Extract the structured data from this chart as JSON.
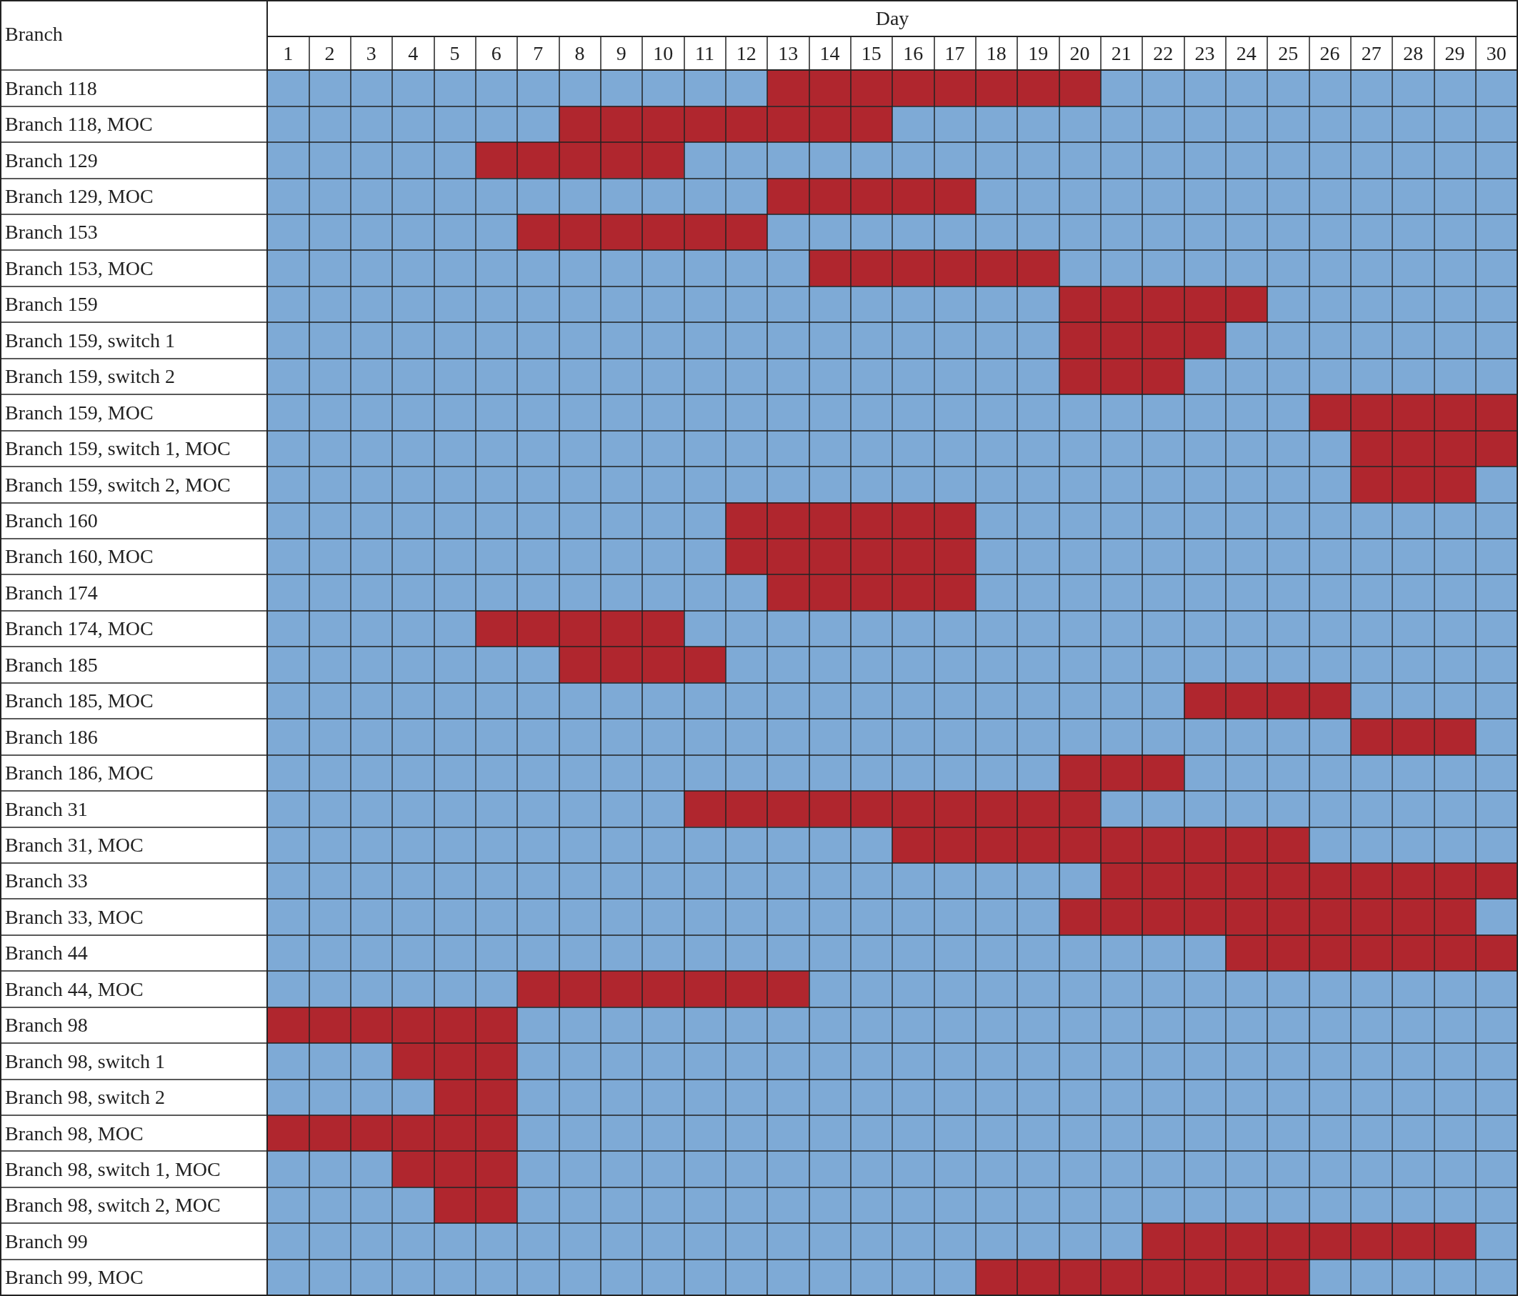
{
  "chart_data": {
    "type": "bar",
    "orientation": "horizontal",
    "xlabel": "Day",
    "ylabel": "Branch",
    "categories": [
      "Branch 118",
      "Branch 118, MOC",
      "Branch 129",
      "Branch 129, MOC",
      "Branch 153",
      "Branch 153, MOC",
      "Branch 159",
      "Branch 159, switch 1",
      "Branch 159, switch 2",
      "Branch 159, MOC",
      "Branch 159, switch 1, MOC",
      "Branch 159, switch 2, MOC",
      "Branch 160",
      "Branch 160, MOC",
      "Branch 174",
      "Branch 174, MOC",
      "Branch 185",
      "Branch 185, MOC",
      "Branch 186",
      "Branch 186, MOC",
      "Branch 31",
      "Branch 31, MOC",
      "Branch 33",
      "Branch 33, MOC",
      "Branch 44",
      "Branch 44, MOC",
      "Branch 98",
      "Branch 98, switch 1",
      "Branch 98, switch 2",
      "Branch 98, MOC",
      "Branch 98, switch 1, MOC",
      "Branch 98, switch 2, MOC",
      "Branch 99",
      "Branch 99, MOC"
    ],
    "base": [
      12.5,
      7.5,
      5.5,
      12.5,
      6.5,
      13.5,
      19.5,
      19.5,
      19.5,
      25.5,
      26.5,
      26.5,
      11.5,
      11.5,
      12.5,
      5.5,
      7.5,
      22.5,
      26.5,
      19.5,
      10.5,
      15.5,
      20.5,
      19.5,
      23.5,
      6.5,
      0.5,
      3.5,
      4.5,
      0.5,
      3.5,
      4.5,
      21.5,
      17.5
    ],
    "values": [
      8,
      8,
      5,
      5,
      6,
      6,
      5,
      4,
      3,
      5,
      4,
      3,
      6,
      6,
      5,
      5,
      4,
      4,
      3,
      3,
      10,
      10,
      10,
      10,
      7,
      7,
      6,
      3,
      2,
      6,
      3,
      2,
      8,
      8
    ],
    "color": "#b0262e",
    "xlim": [
      0.5,
      30.5
    ],
    "xticks": [
      1,
      2,
      3,
      4,
      5,
      6,
      7,
      8,
      9,
      10,
      11,
      12,
      13,
      14,
      15,
      16,
      17,
      18,
      19,
      20,
      21,
      22,
      23,
      24,
      25,
      26,
      27,
      28,
      29,
      30
    ],
    "grid": true
  }
}
